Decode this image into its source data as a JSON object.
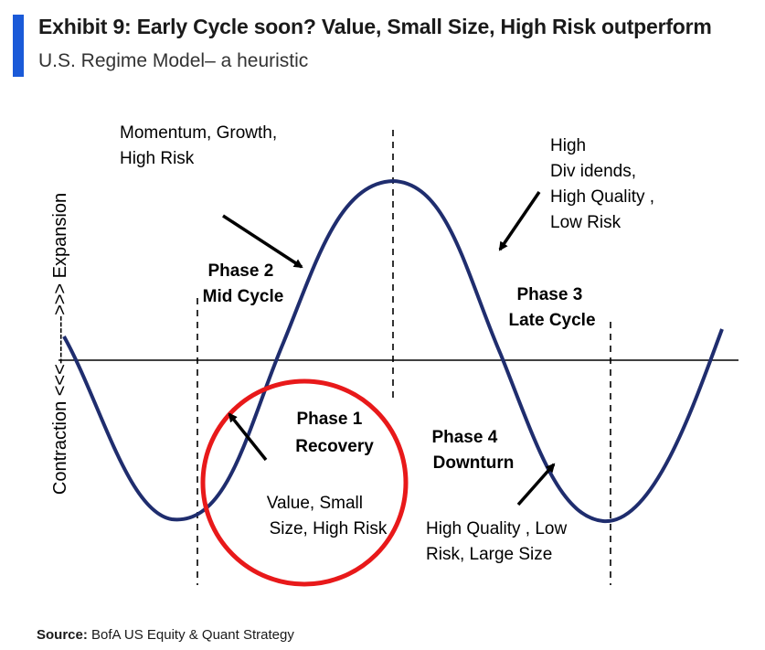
{
  "header": {
    "title": "Exhibit 9: Early Cycle soon? Value, Small Size, High Risk outperform",
    "subtitle": "U.S. Regime Model– a heuristic"
  },
  "diagram": {
    "y_axis_label": "Contraction <<<-------->>> Expansion",
    "phases": {
      "phase1": {
        "name": "Phase 1",
        "desc": "Recovery"
      },
      "phase2": {
        "name": "Phase 2",
        "desc": "Mid Cycle"
      },
      "phase3": {
        "name": "Phase 3",
        "desc": "Late Cycle"
      },
      "phase4": {
        "name": "Phase 4",
        "desc": "Downturn"
      }
    },
    "callouts": {
      "momentum": [
        "Momentum, Growth,",
        "High Risk"
      ],
      "dividends": [
        "High",
        "Div idends,",
        "High Quality ,",
        "Low Risk"
      ],
      "value": [
        "Value, Small",
        "Size, High Risk"
      ],
      "quality": [
        "High Quality , Low",
        "Risk, Large Size"
      ]
    }
  },
  "footer": {
    "source_label": "Source:",
    "source_text": "BofA US Equity & Quant Strategy"
  },
  "colors": {
    "accent": "#1a5ad8",
    "curve": "#1f2d6e",
    "circle": "#e8191a"
  }
}
